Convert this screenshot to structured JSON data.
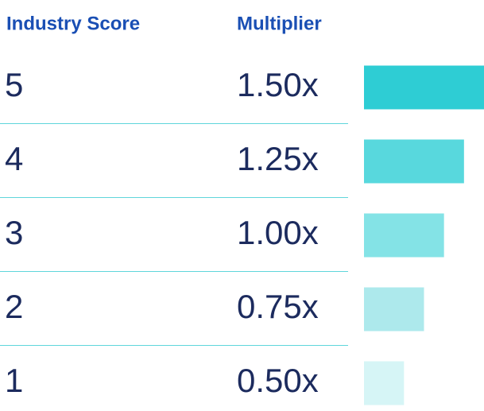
{
  "chart_data": {
    "type": "bar",
    "column_headers": [
      "Industry Score",
      "Multiplier"
    ],
    "categories": [
      "5",
      "4",
      "3",
      "2",
      "1"
    ],
    "values": [
      1.5,
      1.25,
      1.0,
      0.75,
      0.5
    ],
    "value_labels": [
      "1.50x",
      "1.25x",
      "1.00x",
      "0.75x",
      "0.50x"
    ],
    "colors": [
      "#2ecdd4",
      "#58d8dd",
      "#84e3e6",
      "#ade9ec",
      "#d6f5f6"
    ]
  }
}
